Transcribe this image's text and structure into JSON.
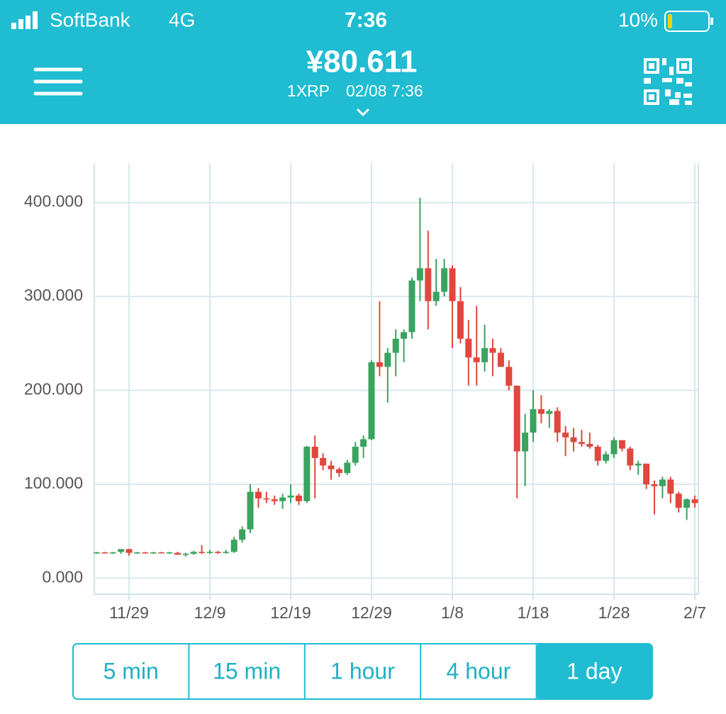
{
  "status": {
    "carrier": "SoftBank",
    "network": "4G",
    "time": "7:36",
    "battery": "10%"
  },
  "header": {
    "price": "¥80.611",
    "pair": "1XRP",
    "timestamp": "02/08 7:36"
  },
  "chart_data": {
    "type": "candlestick",
    "categories": [
      null,
      null,
      null,
      null,
      "11/29",
      null,
      null,
      null,
      null,
      null,
      null,
      null,
      null,
      null,
      "12/9",
      null,
      null,
      null,
      null,
      null,
      null,
      null,
      null,
      null,
      "12/19",
      null,
      null,
      null,
      null,
      null,
      null,
      null,
      null,
      null,
      "12/29",
      null,
      null,
      null,
      null,
      null,
      null,
      null,
      null,
      null,
      "1/8",
      null,
      null,
      null,
      null,
      null,
      null,
      null,
      null,
      null,
      "1/18",
      null,
      null,
      null,
      null,
      null,
      null,
      null,
      null,
      null,
      "1/28",
      null,
      null,
      null,
      null,
      null,
      null,
      null,
      null,
      null,
      "2/7"
    ],
    "open": [
      27,
      27.5,
      27,
      28,
      31,
      27,
      27.5,
      27,
      27.5,
      27,
      27,
      25,
      26,
      28,
      27,
      28,
      27,
      28,
      41,
      52,
      92,
      85,
      84,
      82,
      86,
      88,
      82,
      140,
      128,
      120,
      116,
      112,
      123,
      140,
      148,
      230,
      225,
      240,
      255,
      262,
      317,
      330,
      295,
      305,
      330,
      295,
      255,
      235,
      230,
      245,
      240,
      225,
      205,
      135,
      155,
      180,
      175,
      178,
      155,
      150,
      145,
      143,
      140,
      125,
      132,
      147,
      138,
      120,
      122,
      100,
      98,
      105,
      90,
      75,
      84
    ],
    "high": [
      28,
      28,
      28,
      31,
      31.5,
      28,
      28,
      28,
      28,
      28,
      28,
      27,
      29,
      35,
      30,
      29,
      30,
      44,
      55,
      100,
      96,
      92,
      88,
      90,
      100,
      90,
      141,
      152,
      133,
      125,
      118,
      126,
      145,
      152,
      232,
      295,
      245,
      265,
      265,
      320,
      405,
      370,
      340,
      340,
      333,
      310,
      275,
      290,
      270,
      255,
      245,
      232,
      205,
      175,
      200,
      195,
      180,
      182,
      162,
      160,
      158,
      155,
      142,
      135,
      150,
      147,
      140,
      125,
      122,
      104,
      108,
      108,
      92,
      85,
      88
    ],
    "low": [
      26,
      27,
      26,
      26,
      24,
      26,
      27,
      26,
      27,
      26,
      25,
      23,
      25,
      26,
      26,
      26,
      26,
      27,
      38,
      48,
      75,
      80,
      78,
      74,
      80,
      78,
      80,
      85,
      115,
      105,
      108,
      110,
      120,
      128,
      147,
      215,
      187,
      215,
      230,
      255,
      295,
      265,
      290,
      300,
      245,
      250,
      205,
      205,
      220,
      215,
      225,
      200,
      85,
      98,
      145,
      165,
      160,
      145,
      130,
      135,
      140,
      138,
      120,
      122,
      128,
      135,
      115,
      110,
      95,
      68,
      85,
      80,
      70,
      62,
      75
    ],
    "close": [
      27.5,
      27,
      27.5,
      31,
      27,
      27.5,
      27,
      27.5,
      27,
      27.5,
      25,
      26,
      28,
      27,
      28,
      27,
      28,
      41,
      52,
      92,
      85,
      84,
      82,
      86,
      88,
      82,
      140,
      128,
      120,
      116,
      112,
      123,
      140,
      148,
      230,
      225,
      240,
      255,
      262,
      317,
      330,
      295,
      305,
      330,
      295,
      255,
      235,
      230,
      245,
      240,
      225,
      205,
      135,
      155,
      180,
      175,
      178,
      155,
      150,
      145,
      143,
      140,
      125,
      132,
      147,
      138,
      120,
      122,
      100,
      98,
      105,
      90,
      75,
      84,
      80
    ],
    "up_color": "#3aa35f",
    "down_color": "#e0473d",
    "ylim": [
      -17,
      442
    ],
    "yticks": [
      {
        "value": 0,
        "label": "0.000"
      },
      {
        "value": 100,
        "label": "100.000"
      },
      {
        "value": 200,
        "label": "200.000"
      },
      {
        "value": 300,
        "label": "300.000"
      },
      {
        "value": 400,
        "label": "400.000"
      }
    ],
    "grid": true
  },
  "buttons": [
    "5 min",
    "15 min",
    "1 hour",
    "4 hour",
    "1 day"
  ],
  "selected_button": 4
}
